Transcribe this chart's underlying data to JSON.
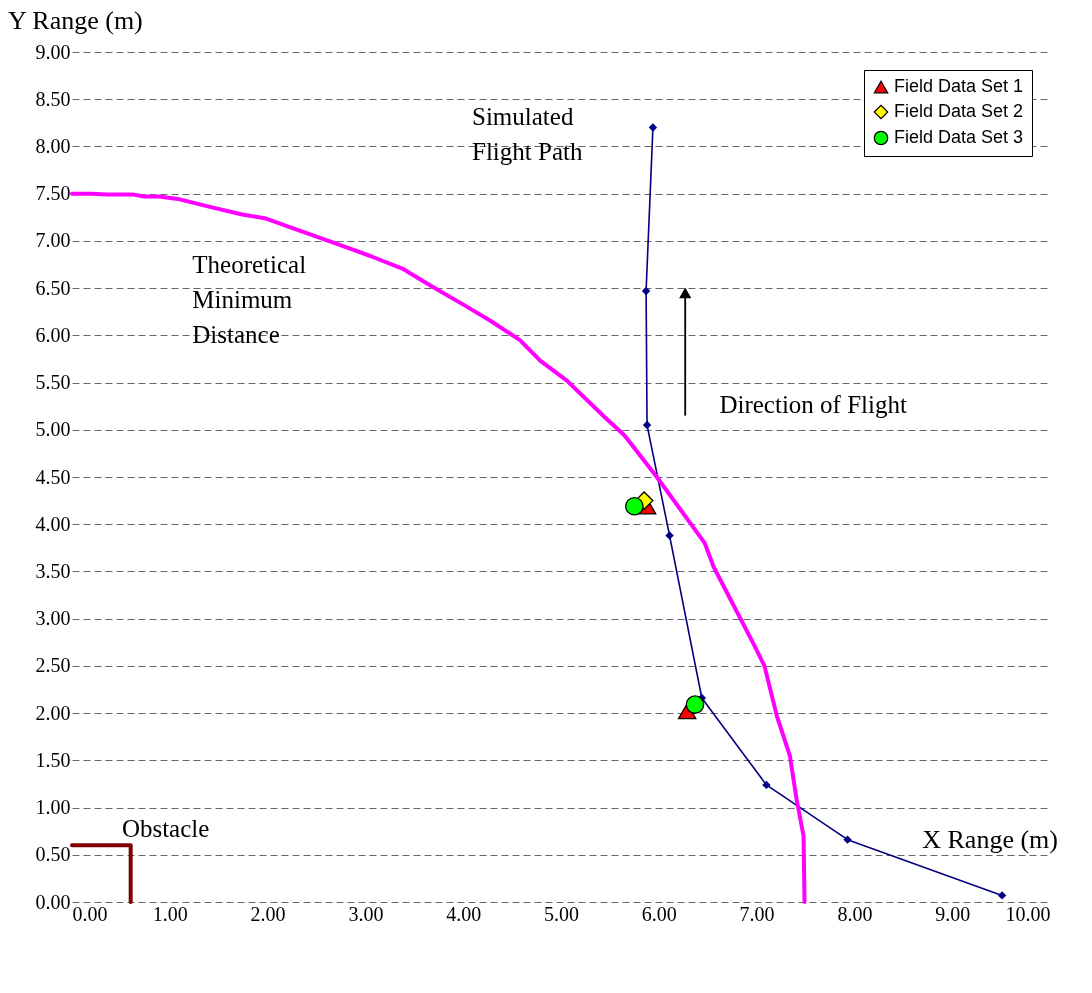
{
  "chart_data": {
    "type": "line",
    "xlabel": "X Range (m)",
    "ylabel": "Y Range (m)",
    "xlim": [
      0,
      10
    ],
    "ylim": [
      0,
      9
    ],
    "xticks": [
      {
        "value": 0,
        "label": "0.00"
      },
      {
        "value": 1,
        "label": "1.00"
      },
      {
        "value": 2,
        "label": "2.00"
      },
      {
        "value": 3,
        "label": "3.00"
      },
      {
        "value": 4,
        "label": "4.00"
      },
      {
        "value": 5,
        "label": "5.00"
      },
      {
        "value": 6,
        "label": "6.00"
      },
      {
        "value": 7,
        "label": "7.00"
      },
      {
        "value": 8,
        "label": "8.00"
      },
      {
        "value": 9,
        "label": "9.00"
      },
      {
        "value": 10,
        "label": "10.00"
      }
    ],
    "yticks": [
      {
        "value": 0,
        "label": "0.00"
      },
      {
        "value": 0.5,
        "label": "0.50"
      },
      {
        "value": 1,
        "label": "1.00"
      },
      {
        "value": 1.5,
        "label": "1.50"
      },
      {
        "value": 2,
        "label": "2.00"
      },
      {
        "value": 2.5,
        "label": "2.50"
      },
      {
        "value": 3,
        "label": "3.00"
      },
      {
        "value": 3.5,
        "label": "3.50"
      },
      {
        "value": 4,
        "label": "4.00"
      },
      {
        "value": 4.5,
        "label": "4.50"
      },
      {
        "value": 5,
        "label": "5.00"
      },
      {
        "value": 5.5,
        "label": "5.50"
      },
      {
        "value": 6,
        "label": "6.00"
      },
      {
        "value": 6.5,
        "label": "6.50"
      },
      {
        "value": 7,
        "label": "7.00"
      },
      {
        "value": 7.5,
        "label": "7.50"
      },
      {
        "value": 8,
        "label": "8.00"
      },
      {
        "value": 8.5,
        "label": "8.50"
      },
      {
        "value": 9,
        "label": "9.00"
      }
    ],
    "grid": "y",
    "legend": "top right",
    "annotations": [
      "Direction of Flight"
    ],
    "series": [
      {
        "name": "Simulated Flight Path",
        "line_style": "solid",
        "color": "#000080",
        "marker": "diamond",
        "x": [
          5.94,
          5.87,
          5.88,
          6.11,
          6.44,
          7.1,
          7.93,
          9.51
        ],
        "values": [
          8.2,
          6.47,
          5.05,
          3.88,
          2.16,
          1.24,
          0.66,
          0.07
        ]
      },
      {
        "name": "Theoretical Minimum Distance",
        "line_style": "solid",
        "color": "#ff00ff",
        "marker": "none",
        "x": [
          0.0,
          0.2,
          0.36,
          0.63,
          0.74,
          0.89,
          1.1,
          1.41,
          1.74,
          1.97,
          2.27,
          2.68,
          3.05,
          3.39,
          3.66,
          4.01,
          4.27,
          4.58,
          4.79,
          5.06,
          5.44,
          5.65,
          5.98,
          6.47,
          6.56,
          6.97,
          7.08,
          7.21,
          7.34,
          7.41,
          7.48,
          7.49
        ],
        "values": [
          7.5,
          7.5,
          7.49,
          7.49,
          7.47,
          7.47,
          7.44,
          7.36,
          7.28,
          7.24,
          7.13,
          6.98,
          6.84,
          6.7,
          6.53,
          6.32,
          6.16,
          5.95,
          5.73,
          5.52,
          5.14,
          4.94,
          4.5,
          3.8,
          3.55,
          2.73,
          2.5,
          1.96,
          1.55,
          1.08,
          0.7,
          0.0
        ]
      },
      {
        "name": "Obstacle",
        "line_style": "solid",
        "color": "#800000",
        "marker": "none",
        "x": [
          0.0,
          0.6,
          0.6
        ],
        "values": [
          0.6,
          0.6,
          0.0
        ]
      },
      {
        "name": "Field Data Set 1",
        "type": "scatter",
        "color": "#ff0000",
        "marker": "triangle",
        "x": [
          5.88,
          6.29
        ],
        "values": [
          4.19,
          2.02
        ]
      },
      {
        "name": "Field Data Set 2",
        "type": "scatter",
        "color": "#ffff00",
        "marker": "diamond",
        "x": [
          5.85
        ],
        "values": [
          4.25
        ]
      },
      {
        "name": "Field Data Set 3",
        "type": "scatter",
        "color": "#00ff00",
        "marker": "circle",
        "x": [
          5.75,
          6.37
        ],
        "values": [
          4.19,
          2.09
        ]
      }
    ]
  }
}
